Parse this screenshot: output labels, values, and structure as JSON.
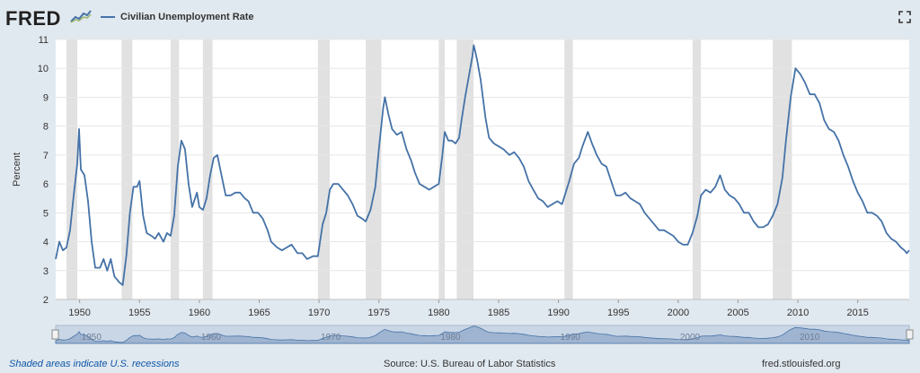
{
  "header": {
    "logo_text": "FRED",
    "legend_label": "Civilian Unemployment Rate",
    "series_color": "#4572a7",
    "recession_color": "#e1e1e1"
  },
  "footer": {
    "note": "Shaded areas indicate U.S. recessions",
    "source": "Source: U.S. Bureau of Labor Statistics",
    "link": "fred.stlouisfed.org"
  },
  "icons": {
    "logo": "fred-graph-icon",
    "fullscreen": "fullscreen-icon"
  },
  "navigator": {
    "labels": [
      "1950",
      "1960",
      "1970",
      "1980",
      "1990",
      "2000",
      "2010"
    ]
  },
  "chart_data": {
    "type": "line",
    "title": "",
    "xlabel": "",
    "ylabel": "Percent",
    "xlim": [
      1948.0,
      2019.3
    ],
    "ylim": [
      2,
      11
    ],
    "yticks": [
      2,
      3,
      4,
      5,
      6,
      7,
      8,
      9,
      10,
      11
    ],
    "xticks": [
      1950,
      1955,
      1960,
      1965,
      1970,
      1975,
      1980,
      1985,
      1990,
      1995,
      2000,
      2005,
      2010,
      2015
    ],
    "grid": true,
    "recessions": [
      [
        1948.9,
        1949.8
      ],
      [
        1953.5,
        1954.4
      ],
      [
        1957.6,
        1958.3
      ],
      [
        1960.3,
        1961.1
      ],
      [
        1969.9,
        1970.9
      ],
      [
        1973.9,
        1975.2
      ],
      [
        1980.0,
        1980.5
      ],
      [
        1981.5,
        1982.9
      ],
      [
        1990.5,
        1991.2
      ],
      [
        2001.2,
        2001.9
      ],
      [
        2007.9,
        2009.5
      ]
    ],
    "series": [
      {
        "values": [
          [
            1948.0,
            3.4
          ],
          [
            1948.3,
            4.0
          ],
          [
            1948.6,
            3.7
          ],
          [
            1948.9,
            3.8
          ],
          [
            1949.2,
            4.4
          ],
          [
            1949.5,
            5.6
          ],
          [
            1949.8,
            6.7
          ],
          [
            1949.95,
            7.9
          ],
          [
            1950.1,
            6.5
          ],
          [
            1950.4,
            6.3
          ],
          [
            1950.7,
            5.4
          ],
          [
            1951.0,
            4.0
          ],
          [
            1951.3,
            3.1
          ],
          [
            1951.7,
            3.1
          ],
          [
            1952.0,
            3.4
          ],
          [
            1952.3,
            3.0
          ],
          [
            1952.6,
            3.4
          ],
          [
            1952.9,
            2.8
          ],
          [
            1953.3,
            2.6
          ],
          [
            1953.6,
            2.5
          ],
          [
            1953.9,
            3.5
          ],
          [
            1954.2,
            5.0
          ],
          [
            1954.5,
            5.9
          ],
          [
            1954.8,
            5.9
          ],
          [
            1955.0,
            6.1
          ],
          [
            1955.3,
            4.9
          ],
          [
            1955.6,
            4.3
          ],
          [
            1956.0,
            4.2
          ],
          [
            1956.3,
            4.1
          ],
          [
            1956.6,
            4.3
          ],
          [
            1957.0,
            4.0
          ],
          [
            1957.3,
            4.3
          ],
          [
            1957.6,
            4.2
          ],
          [
            1957.9,
            4.9
          ],
          [
            1958.2,
            6.6
          ],
          [
            1958.5,
            7.5
          ],
          [
            1958.8,
            7.2
          ],
          [
            1959.1,
            6.0
          ],
          [
            1959.4,
            5.2
          ],
          [
            1959.8,
            5.7
          ],
          [
            1960.0,
            5.2
          ],
          [
            1960.3,
            5.1
          ],
          [
            1960.6,
            5.5
          ],
          [
            1960.9,
            6.3
          ],
          [
            1961.2,
            6.9
          ],
          [
            1961.5,
            7.0
          ],
          [
            1961.9,
            6.2
          ],
          [
            1962.2,
            5.6
          ],
          [
            1962.6,
            5.6
          ],
          [
            1963.0,
            5.7
          ],
          [
            1963.4,
            5.7
          ],
          [
            1963.8,
            5.5
          ],
          [
            1964.1,
            5.4
          ],
          [
            1964.5,
            5.0
          ],
          [
            1964.9,
            5.0
          ],
          [
            1965.3,
            4.8
          ],
          [
            1965.7,
            4.4
          ],
          [
            1966.0,
            4.0
          ],
          [
            1966.5,
            3.8
          ],
          [
            1966.9,
            3.7
          ],
          [
            1967.3,
            3.8
          ],
          [
            1967.7,
            3.9
          ],
          [
            1968.2,
            3.6
          ],
          [
            1968.6,
            3.6
          ],
          [
            1969.0,
            3.4
          ],
          [
            1969.5,
            3.5
          ],
          [
            1969.9,
            3.5
          ],
          [
            1970.3,
            4.6
          ],
          [
            1970.6,
            5.0
          ],
          [
            1970.9,
            5.8
          ],
          [
            1971.2,
            6.0
          ],
          [
            1971.6,
            6.0
          ],
          [
            1972.0,
            5.8
          ],
          [
            1972.4,
            5.6
          ],
          [
            1972.8,
            5.3
          ],
          [
            1973.2,
            4.9
          ],
          [
            1973.6,
            4.8
          ],
          [
            1973.9,
            4.7
          ],
          [
            1974.3,
            5.1
          ],
          [
            1974.7,
            5.9
          ],
          [
            1975.0,
            7.2
          ],
          [
            1975.35,
            8.6
          ],
          [
            1975.5,
            9.0
          ],
          [
            1975.8,
            8.4
          ],
          [
            1976.1,
            7.9
          ],
          [
            1976.5,
            7.7
          ],
          [
            1976.9,
            7.8
          ],
          [
            1977.3,
            7.2
          ],
          [
            1977.7,
            6.8
          ],
          [
            1978.0,
            6.4
          ],
          [
            1978.4,
            6.0
          ],
          [
            1978.8,
            5.9
          ],
          [
            1979.2,
            5.8
          ],
          [
            1979.6,
            5.9
          ],
          [
            1980.0,
            6.0
          ],
          [
            1980.3,
            7.0
          ],
          [
            1980.5,
            7.8
          ],
          [
            1980.8,
            7.5
          ],
          [
            1981.1,
            7.5
          ],
          [
            1981.4,
            7.4
          ],
          [
            1981.7,
            7.6
          ],
          [
            1981.9,
            8.2
          ],
          [
            1982.2,
            9.0
          ],
          [
            1982.5,
            9.7
          ],
          [
            1982.8,
            10.4
          ],
          [
            1982.92,
            10.8
          ],
          [
            1983.2,
            10.3
          ],
          [
            1983.5,
            9.6
          ],
          [
            1983.9,
            8.3
          ],
          [
            1984.2,
            7.6
          ],
          [
            1984.6,
            7.4
          ],
          [
            1985.0,
            7.3
          ],
          [
            1985.4,
            7.2
          ],
          [
            1985.9,
            7.0
          ],
          [
            1986.3,
            7.1
          ],
          [
            1986.7,
            6.9
          ],
          [
            1987.1,
            6.6
          ],
          [
            1987.5,
            6.1
          ],
          [
            1987.9,
            5.8
          ],
          [
            1988.3,
            5.5
          ],
          [
            1988.7,
            5.4
          ],
          [
            1989.1,
            5.2
          ],
          [
            1989.5,
            5.3
          ],
          [
            1989.9,
            5.4
          ],
          [
            1990.3,
            5.3
          ],
          [
            1990.6,
            5.7
          ],
          [
            1990.9,
            6.1
          ],
          [
            1991.3,
            6.7
          ],
          [
            1991.7,
            6.9
          ],
          [
            1992.0,
            7.3
          ],
          [
            1992.45,
            7.8
          ],
          [
            1992.8,
            7.4
          ],
          [
            1993.2,
            7.0
          ],
          [
            1993.6,
            6.7
          ],
          [
            1994.0,
            6.6
          ],
          [
            1994.4,
            6.1
          ],
          [
            1994.8,
            5.6
          ],
          [
            1995.2,
            5.6
          ],
          [
            1995.6,
            5.7
          ],
          [
            1996.0,
            5.5
          ],
          [
            1996.4,
            5.4
          ],
          [
            1996.8,
            5.3
          ],
          [
            1997.2,
            5.0
          ],
          [
            1997.6,
            4.8
          ],
          [
            1998.0,
            4.6
          ],
          [
            1998.4,
            4.4
          ],
          [
            1998.8,
            4.4
          ],
          [
            1999.2,
            4.3
          ],
          [
            1999.6,
            4.2
          ],
          [
            2000.0,
            4.0
          ],
          [
            2000.4,
            3.9
          ],
          [
            2000.8,
            3.9
          ],
          [
            2001.2,
            4.3
          ],
          [
            2001.6,
            4.9
          ],
          [
            2001.9,
            5.6
          ],
          [
            2002.3,
            5.8
          ],
          [
            2002.7,
            5.7
          ],
          [
            2003.1,
            5.9
          ],
          [
            2003.5,
            6.3
          ],
          [
            2003.9,
            5.8
          ],
          [
            2004.3,
            5.6
          ],
          [
            2004.7,
            5.5
          ],
          [
            2005.1,
            5.3
          ],
          [
            2005.5,
            5.0
          ],
          [
            2005.9,
            5.0
          ],
          [
            2006.3,
            4.7
          ],
          [
            2006.7,
            4.5
          ],
          [
            2007.1,
            4.5
          ],
          [
            2007.5,
            4.6
          ],
          [
            2007.9,
            4.9
          ],
          [
            2008.3,
            5.3
          ],
          [
            2008.7,
            6.2
          ],
          [
            2009.0,
            7.5
          ],
          [
            2009.4,
            9.0
          ],
          [
            2009.8,
            10.0
          ],
          [
            2010.2,
            9.8
          ],
          [
            2010.6,
            9.5
          ],
          [
            2011.0,
            9.1
          ],
          [
            2011.4,
            9.1
          ],
          [
            2011.8,
            8.8
          ],
          [
            2012.2,
            8.2
          ],
          [
            2012.6,
            7.9
          ],
          [
            2013.0,
            7.8
          ],
          [
            2013.4,
            7.5
          ],
          [
            2013.8,
            7.0
          ],
          [
            2014.2,
            6.6
          ],
          [
            2014.6,
            6.1
          ],
          [
            2015.0,
            5.7
          ],
          [
            2015.4,
            5.4
          ],
          [
            2015.8,
            5.0
          ],
          [
            2016.2,
            5.0
          ],
          [
            2016.6,
            4.9
          ],
          [
            2017.0,
            4.7
          ],
          [
            2017.4,
            4.3
          ],
          [
            2017.8,
            4.1
          ],
          [
            2018.2,
            4.0
          ],
          [
            2018.6,
            3.8
          ],
          [
            2018.9,
            3.7
          ],
          [
            2019.1,
            3.6
          ],
          [
            2019.3,
            3.7
          ]
        ]
      }
    ]
  }
}
